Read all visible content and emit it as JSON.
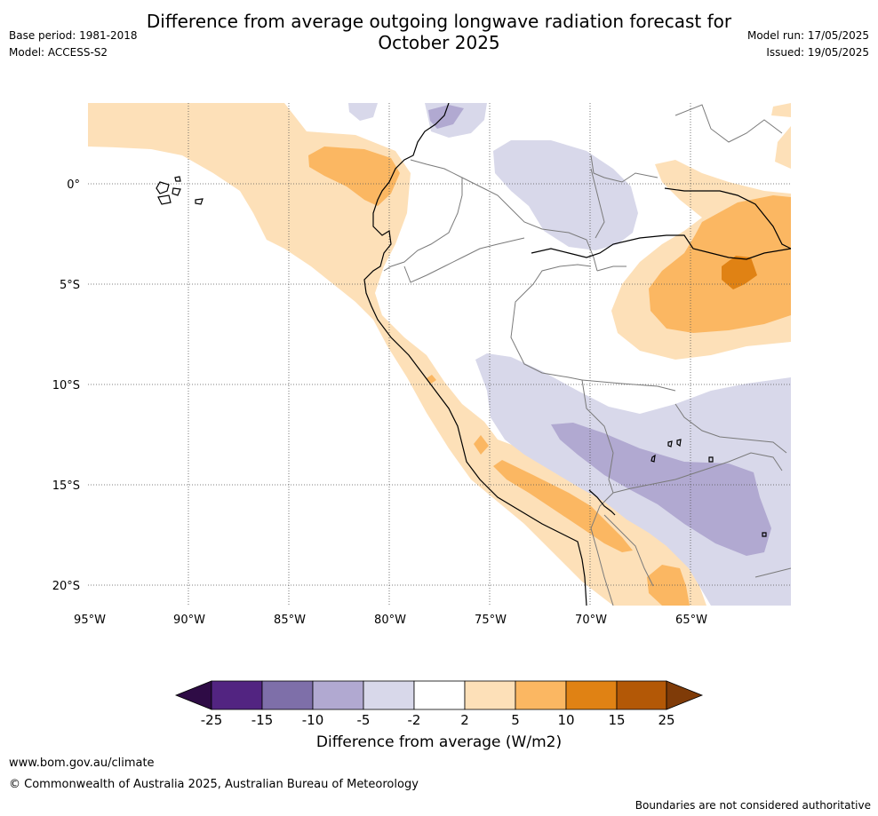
{
  "header": {
    "title_line1": "Difference from average outgoing longwave radiation forecast for",
    "title_line2": "October 2025",
    "base_period": "Base period: 1981-2018",
    "model": "Model: ACCESS-S2",
    "model_run": "Model run: 17/05/2025",
    "issued": "Issued: 19/05/2025"
  },
  "map": {
    "region": "Western South America",
    "lat_labels": [
      "0°",
      "5°S",
      "10°S",
      "15°S",
      "20°S"
    ],
    "lon_labels": [
      "95°W",
      "90°W",
      "85°W",
      "80°W",
      "75°W",
      "70°W",
      "65°W"
    ],
    "colors": {
      "neg25": "#2e0b45",
      "neg15": "#522481",
      "neg10": "#7e6fa9",
      "neg5": "#b1a9d1",
      "neg2": "#d8d8ea",
      "zero": "#ffffff",
      "pos2": "#fde0b8",
      "pos5": "#fbb762",
      "pos10": "#e08214",
      "pos15": "#b35806",
      "pos25": "#7f3b08",
      "coast": "#000000",
      "border": "#7a7a7a",
      "grid": "#555555"
    }
  },
  "colorbar": {
    "ticks": [
      "-25",
      "-15",
      "-10",
      "-5",
      "-2",
      "2",
      "5",
      "10",
      "15",
      "25"
    ],
    "label": "Difference from average (W/m2)"
  },
  "footer": {
    "url": "www.bom.gov.au/climate",
    "copyright": "© Commonwealth of Australia 2025, Australian Bureau of Meteorology",
    "note": "Boundaries are not considered authoritative"
  }
}
